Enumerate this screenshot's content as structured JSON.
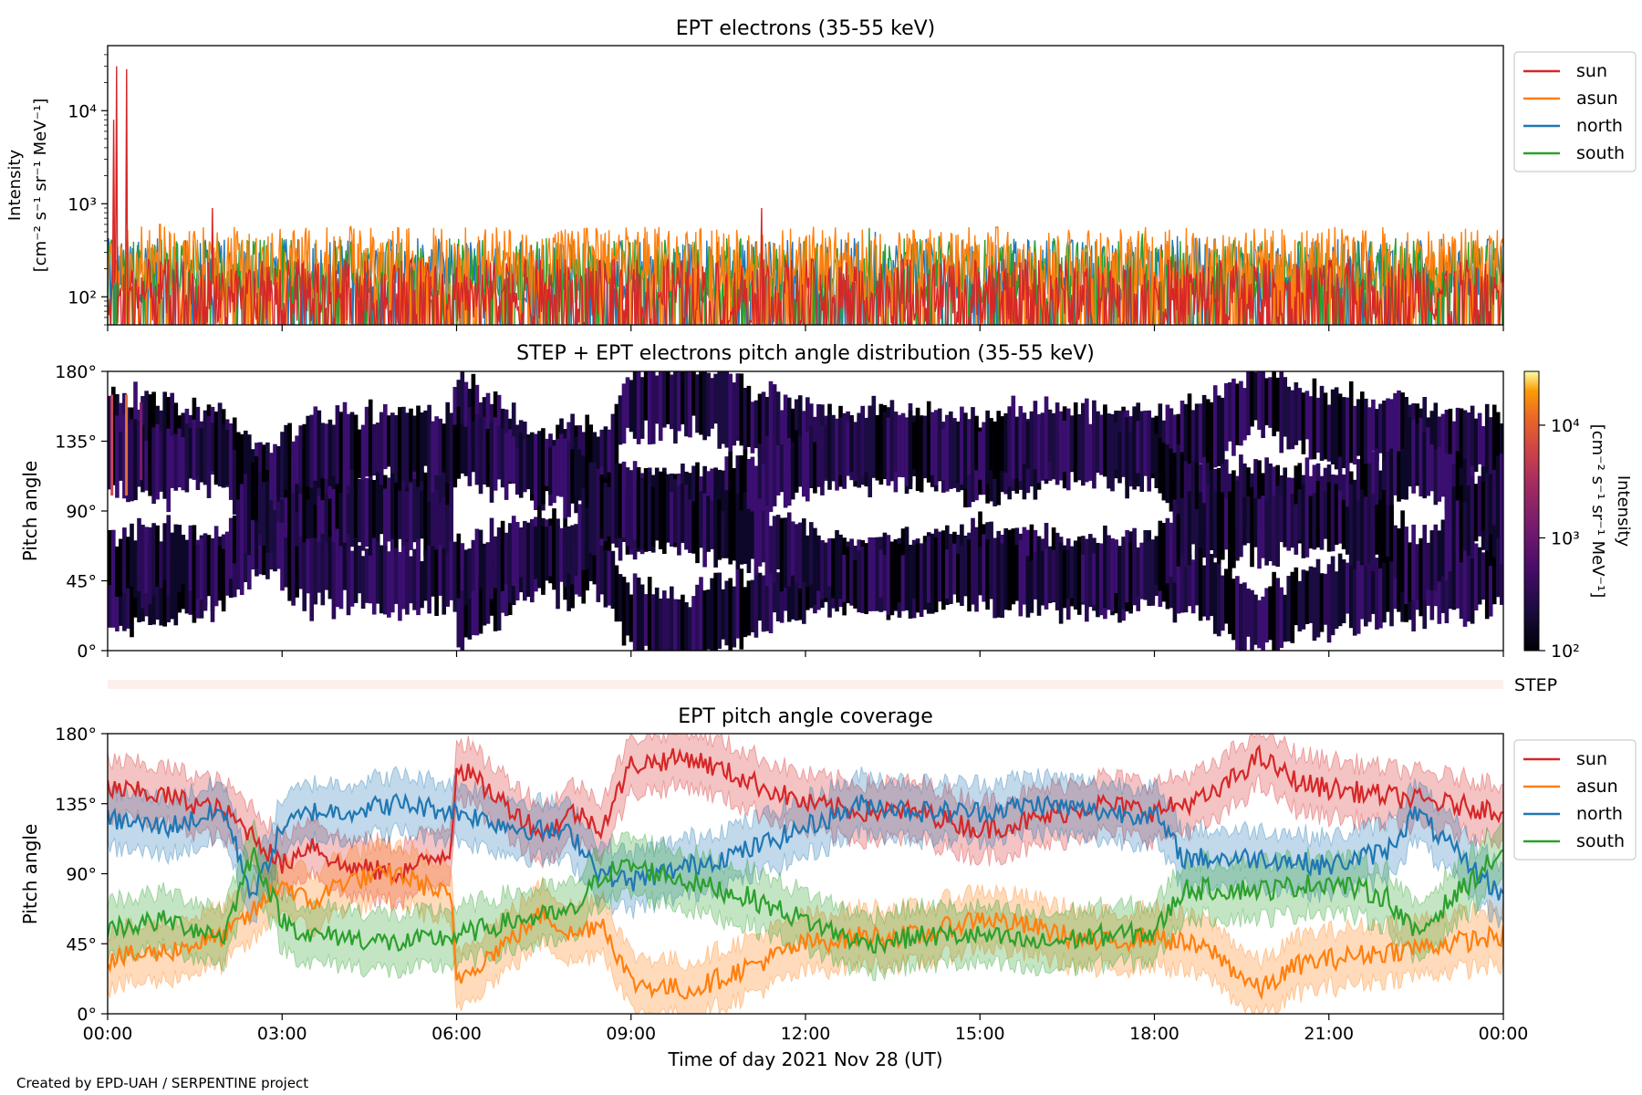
{
  "footer": "Created by EPD-UAH / SERPENTINE project",
  "colors": {
    "sun": "#d62728",
    "asun": "#ff7f0e",
    "north": "#1f77b4",
    "south": "#2ca02c",
    "step_bar": "#fdf0ec"
  },
  "x_axis": {
    "label": "Time of day 2021 Nov 28 (UT)",
    "ticks": [
      "00:00",
      "03:00",
      "06:00",
      "09:00",
      "12:00",
      "15:00",
      "18:00",
      "21:00",
      "00:00"
    ]
  },
  "chart_data": [
    {
      "type": "line",
      "title": "EPT electrons (35-55 keV)",
      "ylabel_line1": "Intensity",
      "ylabel_line2": "[cm⁻² s⁻¹ sr⁻¹ MeV⁻¹]",
      "yscale": "log",
      "ylim": [
        50,
        50000
      ],
      "yticks": [
        {
          "value": 100,
          "label": "10²"
        },
        {
          "value": 1000,
          "label": "10³"
        },
        {
          "value": 10000,
          "label": "10⁴"
        }
      ],
      "xlim_hours": [
        0,
        24
      ],
      "legend": {
        "position": "right",
        "entries": [
          "sun",
          "asun",
          "north",
          "south"
        ]
      },
      "series": [
        {
          "name": "north",
          "color": "#1f77b4",
          "baseline": 150,
          "spikes": [
            [
              13.2,
              500
            ],
            [
              18.4,
              450
            ]
          ]
        },
        {
          "name": "south",
          "color": "#2ca02c",
          "baseline": 150,
          "spikes": [
            [
              13.1,
              550
            ],
            [
              14.3,
              450
            ],
            [
              17.8,
              480
            ]
          ]
        },
        {
          "name": "asun",
          "color": "#ff7f0e",
          "baseline": 200,
          "spikes": [
            [
              0.9,
              600
            ],
            [
              8.2,
              550
            ],
            [
              15.3,
              560
            ]
          ]
        },
        {
          "name": "sun",
          "color": "#d62728",
          "baseline": 90,
          "spikes": [
            [
              0.1,
              8000
            ],
            [
              0.15,
              30000
            ],
            [
              0.33,
              28000
            ],
            [
              1.8,
              900
            ],
            [
              11.25,
              900
            ]
          ]
        }
      ]
    },
    {
      "type": "heatmap",
      "title": "STEP + EPT electrons pitch angle distribution (35-55 keV)",
      "ylabel": "Pitch angle",
      "ylim": [
        0,
        180
      ],
      "yticks": [
        "0°",
        "45°",
        "90°",
        "135°",
        "180°"
      ],
      "xlim_hours": [
        0,
        24
      ],
      "colorbar": {
        "label_line1": "Intensity",
        "label_line2": "[cm⁻² s⁻¹ sr⁻¹ MeV⁻¹]",
        "scale": "log",
        "range": [
          100,
          30000
        ],
        "ticks": [
          {
            "value": 100,
            "label": "10²"
          },
          {
            "value": 1000,
            "label": "10³"
          },
          {
            "value": 10000,
            "label": "10⁴"
          }
        ],
        "colormap": "inferno"
      }
    },
    {
      "type": "bar",
      "label": "STEP",
      "xlim_hours": [
        0,
        24
      ]
    },
    {
      "type": "area",
      "title": "EPT pitch angle coverage",
      "ylabel": "Pitch angle",
      "ylim": [
        0,
        180
      ],
      "yticks": [
        "0°",
        "45°",
        "90°",
        "135°",
        "180°"
      ],
      "xlim_hours": [
        0,
        24
      ],
      "legend": {
        "position": "right",
        "entries": [
          "sun",
          "asun",
          "north",
          "south"
        ]
      },
      "band_halfwidth_deg": 18,
      "series": [
        {
          "name": "sun",
          "color": "#d62728",
          "x": [
            0,
            1,
            2,
            2.5,
            3,
            3.5,
            4,
            5,
            5.9,
            6,
            7,
            7.5,
            8,
            8.5,
            9,
            10,
            11,
            12,
            13,
            14,
            15,
            16,
            17,
            18,
            19,
            19.8,
            20.5,
            21,
            22,
            23,
            24
          ],
          "y": [
            145,
            140,
            130,
            115,
            95,
            110,
            95,
            90,
            105,
            160,
            130,
            115,
            130,
            120,
            160,
            165,
            150,
            135,
            130,
            130,
            118,
            125,
            135,
            130,
            140,
            165,
            148,
            145,
            140,
            135,
            130
          ]
        },
        {
          "name": "asun",
          "color": "#ff7f0e",
          "x": [
            0,
            1,
            2,
            2.5,
            3,
            3.5,
            4,
            5,
            5.9,
            6,
            7,
            7.5,
            8,
            8.5,
            9,
            10,
            11,
            12,
            13,
            14,
            15,
            16,
            17,
            18,
            19,
            19.8,
            20.5,
            21,
            22,
            23,
            24
          ],
          "y": [
            35,
            40,
            50,
            65,
            85,
            70,
            85,
            90,
            75,
            22,
            50,
            65,
            50,
            60,
            20,
            15,
            30,
            45,
            50,
            50,
            62,
            55,
            45,
            50,
            40,
            15,
            32,
            35,
            40,
            45,
            50
          ]
        },
        {
          "name": "north",
          "color": "#1f77b4",
          "x": [
            0,
            1,
            2,
            2.5,
            3,
            3.5,
            4,
            5,
            6,
            7,
            8,
            8.5,
            9,
            10,
            11,
            12,
            13,
            14,
            15,
            16,
            17,
            18,
            18.5,
            19,
            20,
            21,
            22,
            22.5,
            23,
            24
          ],
          "y": [
            125,
            120,
            130,
            75,
            120,
            130,
            130,
            135,
            130,
            120,
            115,
            90,
            85,
            95,
            105,
            120,
            135,
            130,
            130,
            135,
            130,
            128,
            100,
            100,
            100,
            95,
            105,
            130,
            110,
            75
          ]
        },
        {
          "name": "south",
          "color": "#2ca02c",
          "x": [
            0,
            1,
            2,
            2.5,
            3,
            3.5,
            4,
            5,
            6,
            7,
            8,
            8.5,
            9,
            10,
            11,
            12,
            13,
            14,
            15,
            16,
            17,
            18,
            18.5,
            19,
            20,
            21,
            22,
            22.5,
            23,
            24
          ],
          "y": [
            55,
            60,
            50,
            105,
            60,
            50,
            50,
            45,
            50,
            60,
            65,
            90,
            95,
            85,
            75,
            60,
            45,
            50,
            50,
            45,
            50,
            52,
            80,
            80,
            80,
            85,
            75,
            50,
            70,
            105
          ]
        }
      ]
    }
  ]
}
